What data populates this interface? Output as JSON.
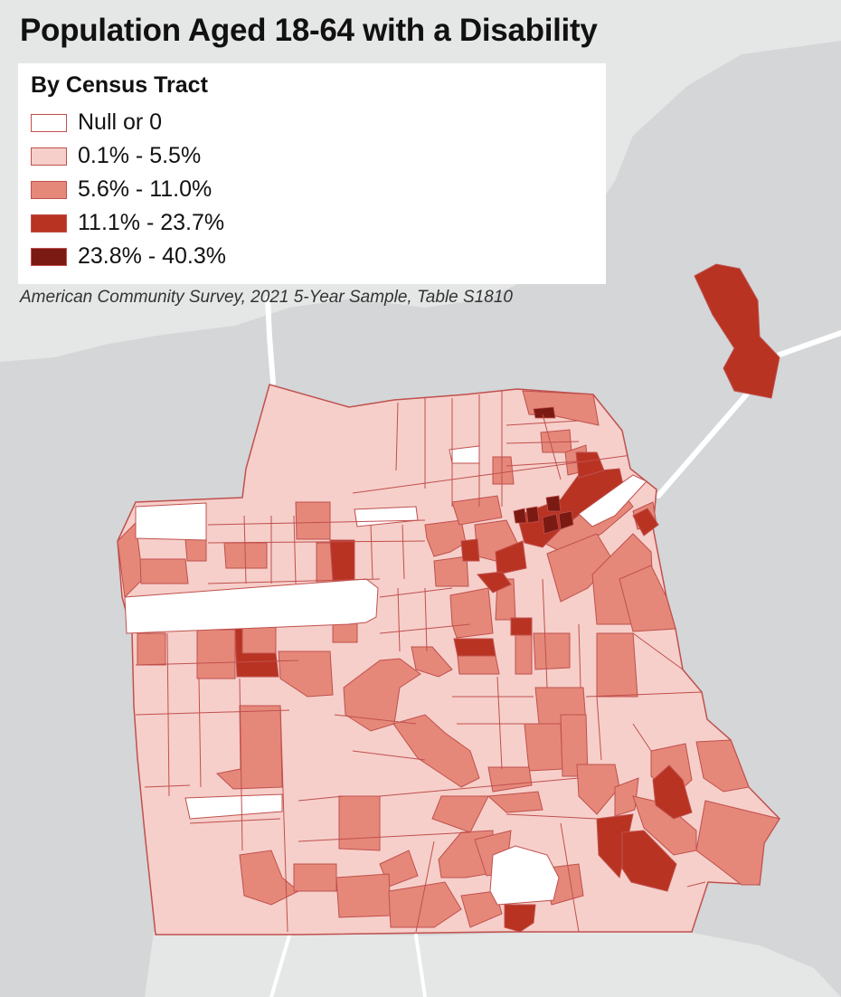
{
  "map": {
    "title": "Population Aged 18-64 with a Disability",
    "source": "American Community Survey, 2021 5-Year Sample, Table S1810",
    "colors": {
      "water": "#d4d6d8",
      "land": "#e5e6e6",
      "road": "#ffffff",
      "border": "#c0504d"
    },
    "legend": {
      "title": "By Census Tract",
      "classes": [
        {
          "label": "Null or 0",
          "color": "#ffffff"
        },
        {
          "label": "0.1% - 5.5%",
          "color": "#f6cfca"
        },
        {
          "label": "5.6% - 11.0%",
          "color": "#e5887a"
        },
        {
          "label": "11.1% - 23.7%",
          "color": "#b83322"
        },
        {
          "label": "23.8% - 40.3%",
          "color": "#7a1a12"
        }
      ]
    }
  }
}
